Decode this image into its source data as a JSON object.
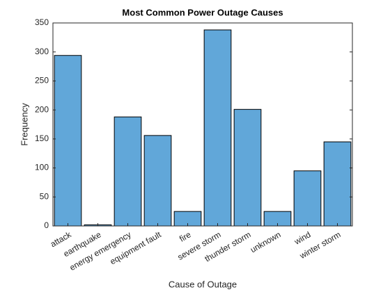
{
  "chart_data": {
    "type": "bar",
    "title": "Most Common Power Outage Causes",
    "xlabel": "Cause of Outage",
    "ylabel": "Frequency",
    "categories": [
      "attack",
      "earthquake",
      "energy emergency",
      "equipment fault",
      "fire",
      "severe storm",
      "thunder storm",
      "unknown",
      "wind",
      "winter storm"
    ],
    "values": [
      294,
      2,
      188,
      156,
      25,
      338,
      201,
      25,
      95,
      145
    ],
    "color": "#61a7d9",
    "ylim": [
      0,
      350
    ],
    "yticks": [
      0,
      50,
      100,
      150,
      200,
      250,
      300,
      350
    ]
  }
}
